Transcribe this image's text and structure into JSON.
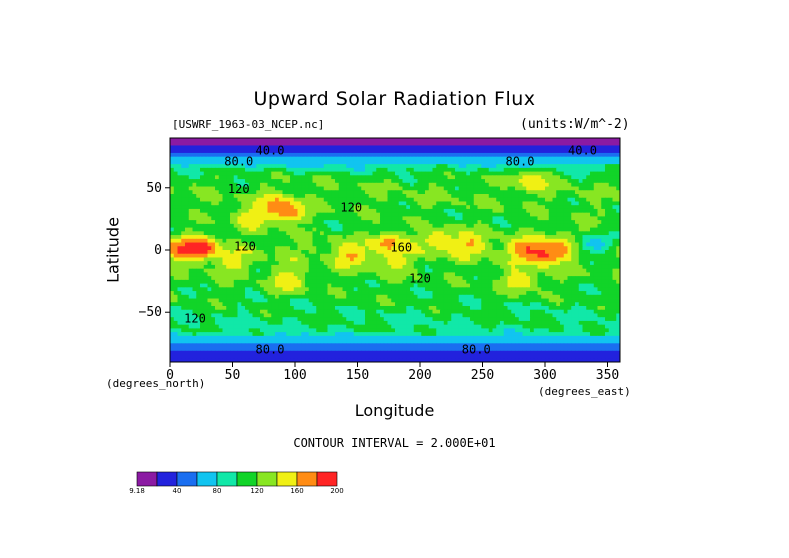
{
  "chart_data": {
    "type": "heatmap",
    "title": "Upward Solar Radiation Flux",
    "source_label": "[USWRF_1963-03_NCEP.nc]",
    "units_label": "(units:W/m^-2)",
    "xlabel": "Longitude",
    "ylabel": "Latitude",
    "x_unit_label": "(degrees_east)",
    "y_unit_label": "(degrees_north)",
    "contour_interval_label": "CONTOUR INTERVAL = 2.000E+01",
    "xlim": [
      0,
      360
    ],
    "ylim": [
      -90,
      90
    ],
    "x_ticks": [
      0,
      50,
      100,
      150,
      200,
      250,
      300,
      350
    ],
    "y_ticks": [
      50,
      0,
      -50
    ],
    "y_tick_labels": [
      "50",
      "0",
      "−50"
    ],
    "contour_labels": [
      {
        "text": "40.0",
        "x": 80,
        "y": 80
      },
      {
        "text": "40.0",
        "x": 330,
        "y": 80
      },
      {
        "text": "80.0",
        "x": 55,
        "y": 71
      },
      {
        "text": "80.0",
        "x": 280,
        "y": 71
      },
      {
        "text": "120",
        "x": 55,
        "y": 49
      },
      {
        "text": "120",
        "x": 145,
        "y": 34
      },
      {
        "text": "120",
        "x": 60,
        "y": 3
      },
      {
        "text": "160",
        "x": 185,
        "y": 2
      },
      {
        "text": "120",
        "x": 200,
        "y": -23
      },
      {
        "text": "120",
        "x": 20,
        "y": -55
      },
      {
        "text": "80.0",
        "x": 80,
        "y": -80
      },
      {
        "text": "80.0",
        "x": 245,
        "y": -80
      }
    ],
    "colorbar": {
      "ticks": [
        "9.18",
        "40",
        "80",
        "120",
        "160",
        "200"
      ],
      "colors": [
        "#8b1aa3",
        "#2222dd",
        "#1a6ef0",
        "#11c4f0",
        "#11e8a8",
        "#11d428",
        "#88e622",
        "#f0f014",
        "#ff8c14",
        "#ff2424"
      ],
      "range": [
        9.18,
        200
      ]
    },
    "bands": [
      {
        "lat": 85,
        "value": 20
      },
      {
        "lat": 78,
        "value": 45
      },
      {
        "lat": 72,
        "value": 75
      },
      {
        "lat": 65,
        "value": 100
      },
      {
        "lat": 58,
        "value": 118
      },
      {
        "lat": 50,
        "value": 120
      },
      {
        "lat": 40,
        "value": 122
      },
      {
        "lat": 30,
        "value": 118
      },
      {
        "lat": 20,
        "value": 115
      },
      {
        "lat": 10,
        "value": 120
      },
      {
        "lat": 0,
        "value": 130
      },
      {
        "lat": -10,
        "value": 122
      },
      {
        "lat": -20,
        "value": 118
      },
      {
        "lat": -30,
        "value": 115
      },
      {
        "lat": -40,
        "value": 112
      },
      {
        "lat": -50,
        "value": 108
      },
      {
        "lat": -58,
        "value": 105
      },
      {
        "lat": -65,
        "value": 100
      },
      {
        "lat": -72,
        "value": 80
      },
      {
        "lat": -78,
        "value": 55
      },
      {
        "lat": -85,
        "value": 30
      }
    ],
    "hotspots": [
      {
        "lon": 10,
        "lat": 0,
        "value": 185
      },
      {
        "lon": 25,
        "lat": 2,
        "value": 195
      },
      {
        "lon": 85,
        "lat": 35,
        "value": 175
      },
      {
        "lon": 95,
        "lat": 30,
        "value": 170
      },
      {
        "lon": 65,
        "lat": 25,
        "value": 160
      },
      {
        "lon": 175,
        "lat": 5,
        "value": 170
      },
      {
        "lon": 145,
        "lat": -5,
        "value": 165
      },
      {
        "lon": 240,
        "lat": 5,
        "value": 165
      },
      {
        "lon": 215,
        "lat": 8,
        "value": 160
      },
      {
        "lon": 285,
        "lat": 0,
        "value": 180
      },
      {
        "lon": 300,
        "lat": -3,
        "value": 190
      },
      {
        "lon": 310,
        "lat": 2,
        "value": 175
      },
      {
        "lon": 95,
        "lat": -25,
        "value": 160
      },
      {
        "lon": 280,
        "lat": -25,
        "value": 160
      },
      {
        "lon": 290,
        "lat": 55,
        "value": 160
      },
      {
        "lon": 50,
        "lat": -10,
        "value": 150
      },
      {
        "lon": 180,
        "lat": -10,
        "value": 150
      },
      {
        "lon": 335,
        "lat": 15,
        "value": 135
      },
      {
        "lon": 340,
        "lat": 5,
        "value": 75
      }
    ],
    "grid": false,
    "legend_position": "bottom-left"
  }
}
